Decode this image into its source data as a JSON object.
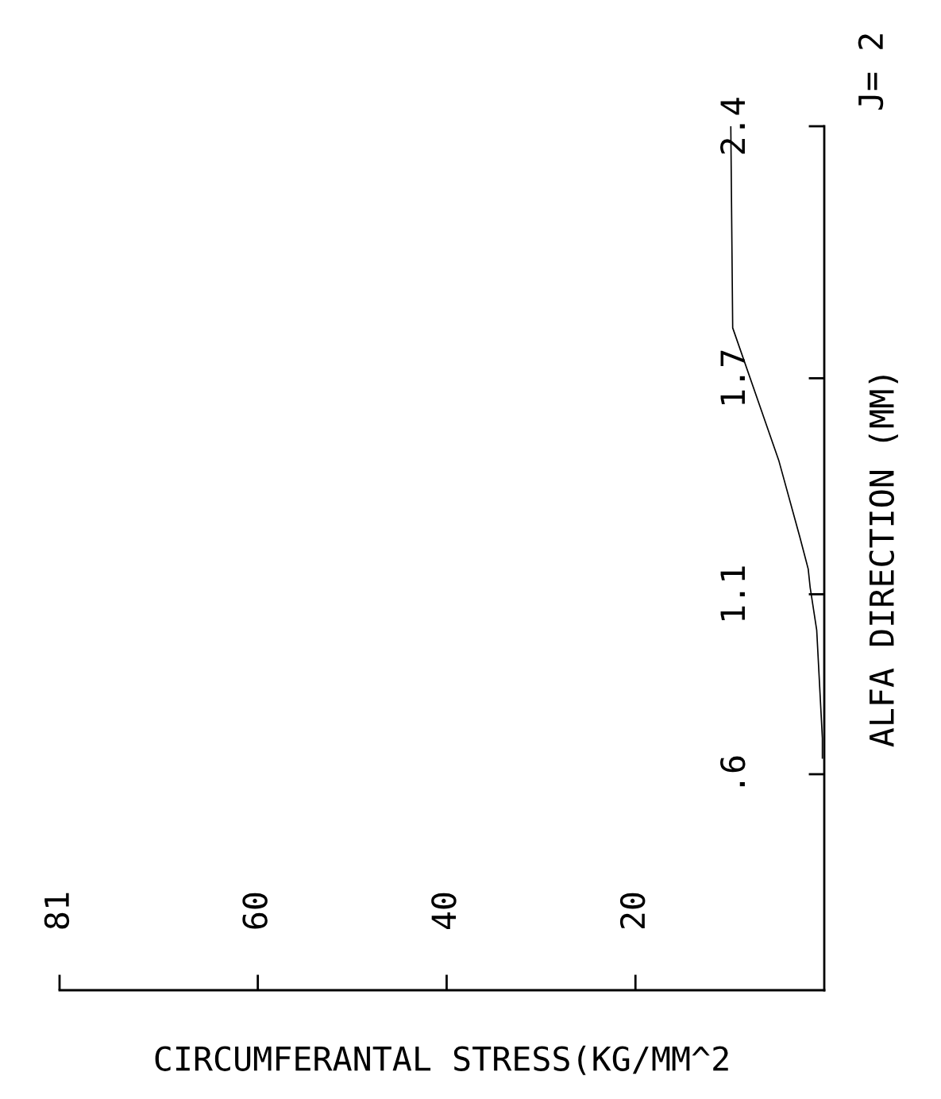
{
  "chart_data": {
    "type": "line",
    "xlabel": "CIRCUMFERANTAL STRESS(KG/MM^2",
    "ylabel": "ALFA DIRECTION (MM)",
    "annotations": [
      "J= 2"
    ],
    "series": [
      {
        "color": "#000000",
        "x": [
          0.2,
          0.2,
          0.8,
          1.5,
          1.7,
          2.6,
          4.8,
          9.7,
          9.9
        ],
        "values": [
          0.645,
          0.7,
          1.0,
          1.12,
          1.17,
          1.26,
          1.47,
          1.84,
          2.4
        ]
      }
    ],
    "xlim": [
      81,
      0
    ],
    "xticks": [
      20,
      40,
      60,
      81
    ],
    "ylim": [
      0,
      2.4
    ],
    "yticks": [
      {
        "value": 0.6,
        "label": ".6"
      },
      1.1,
      1.7,
      2.4
    ],
    "grid": false,
    "legend": false,
    "marker": "none",
    "line_style": "solid"
  }
}
